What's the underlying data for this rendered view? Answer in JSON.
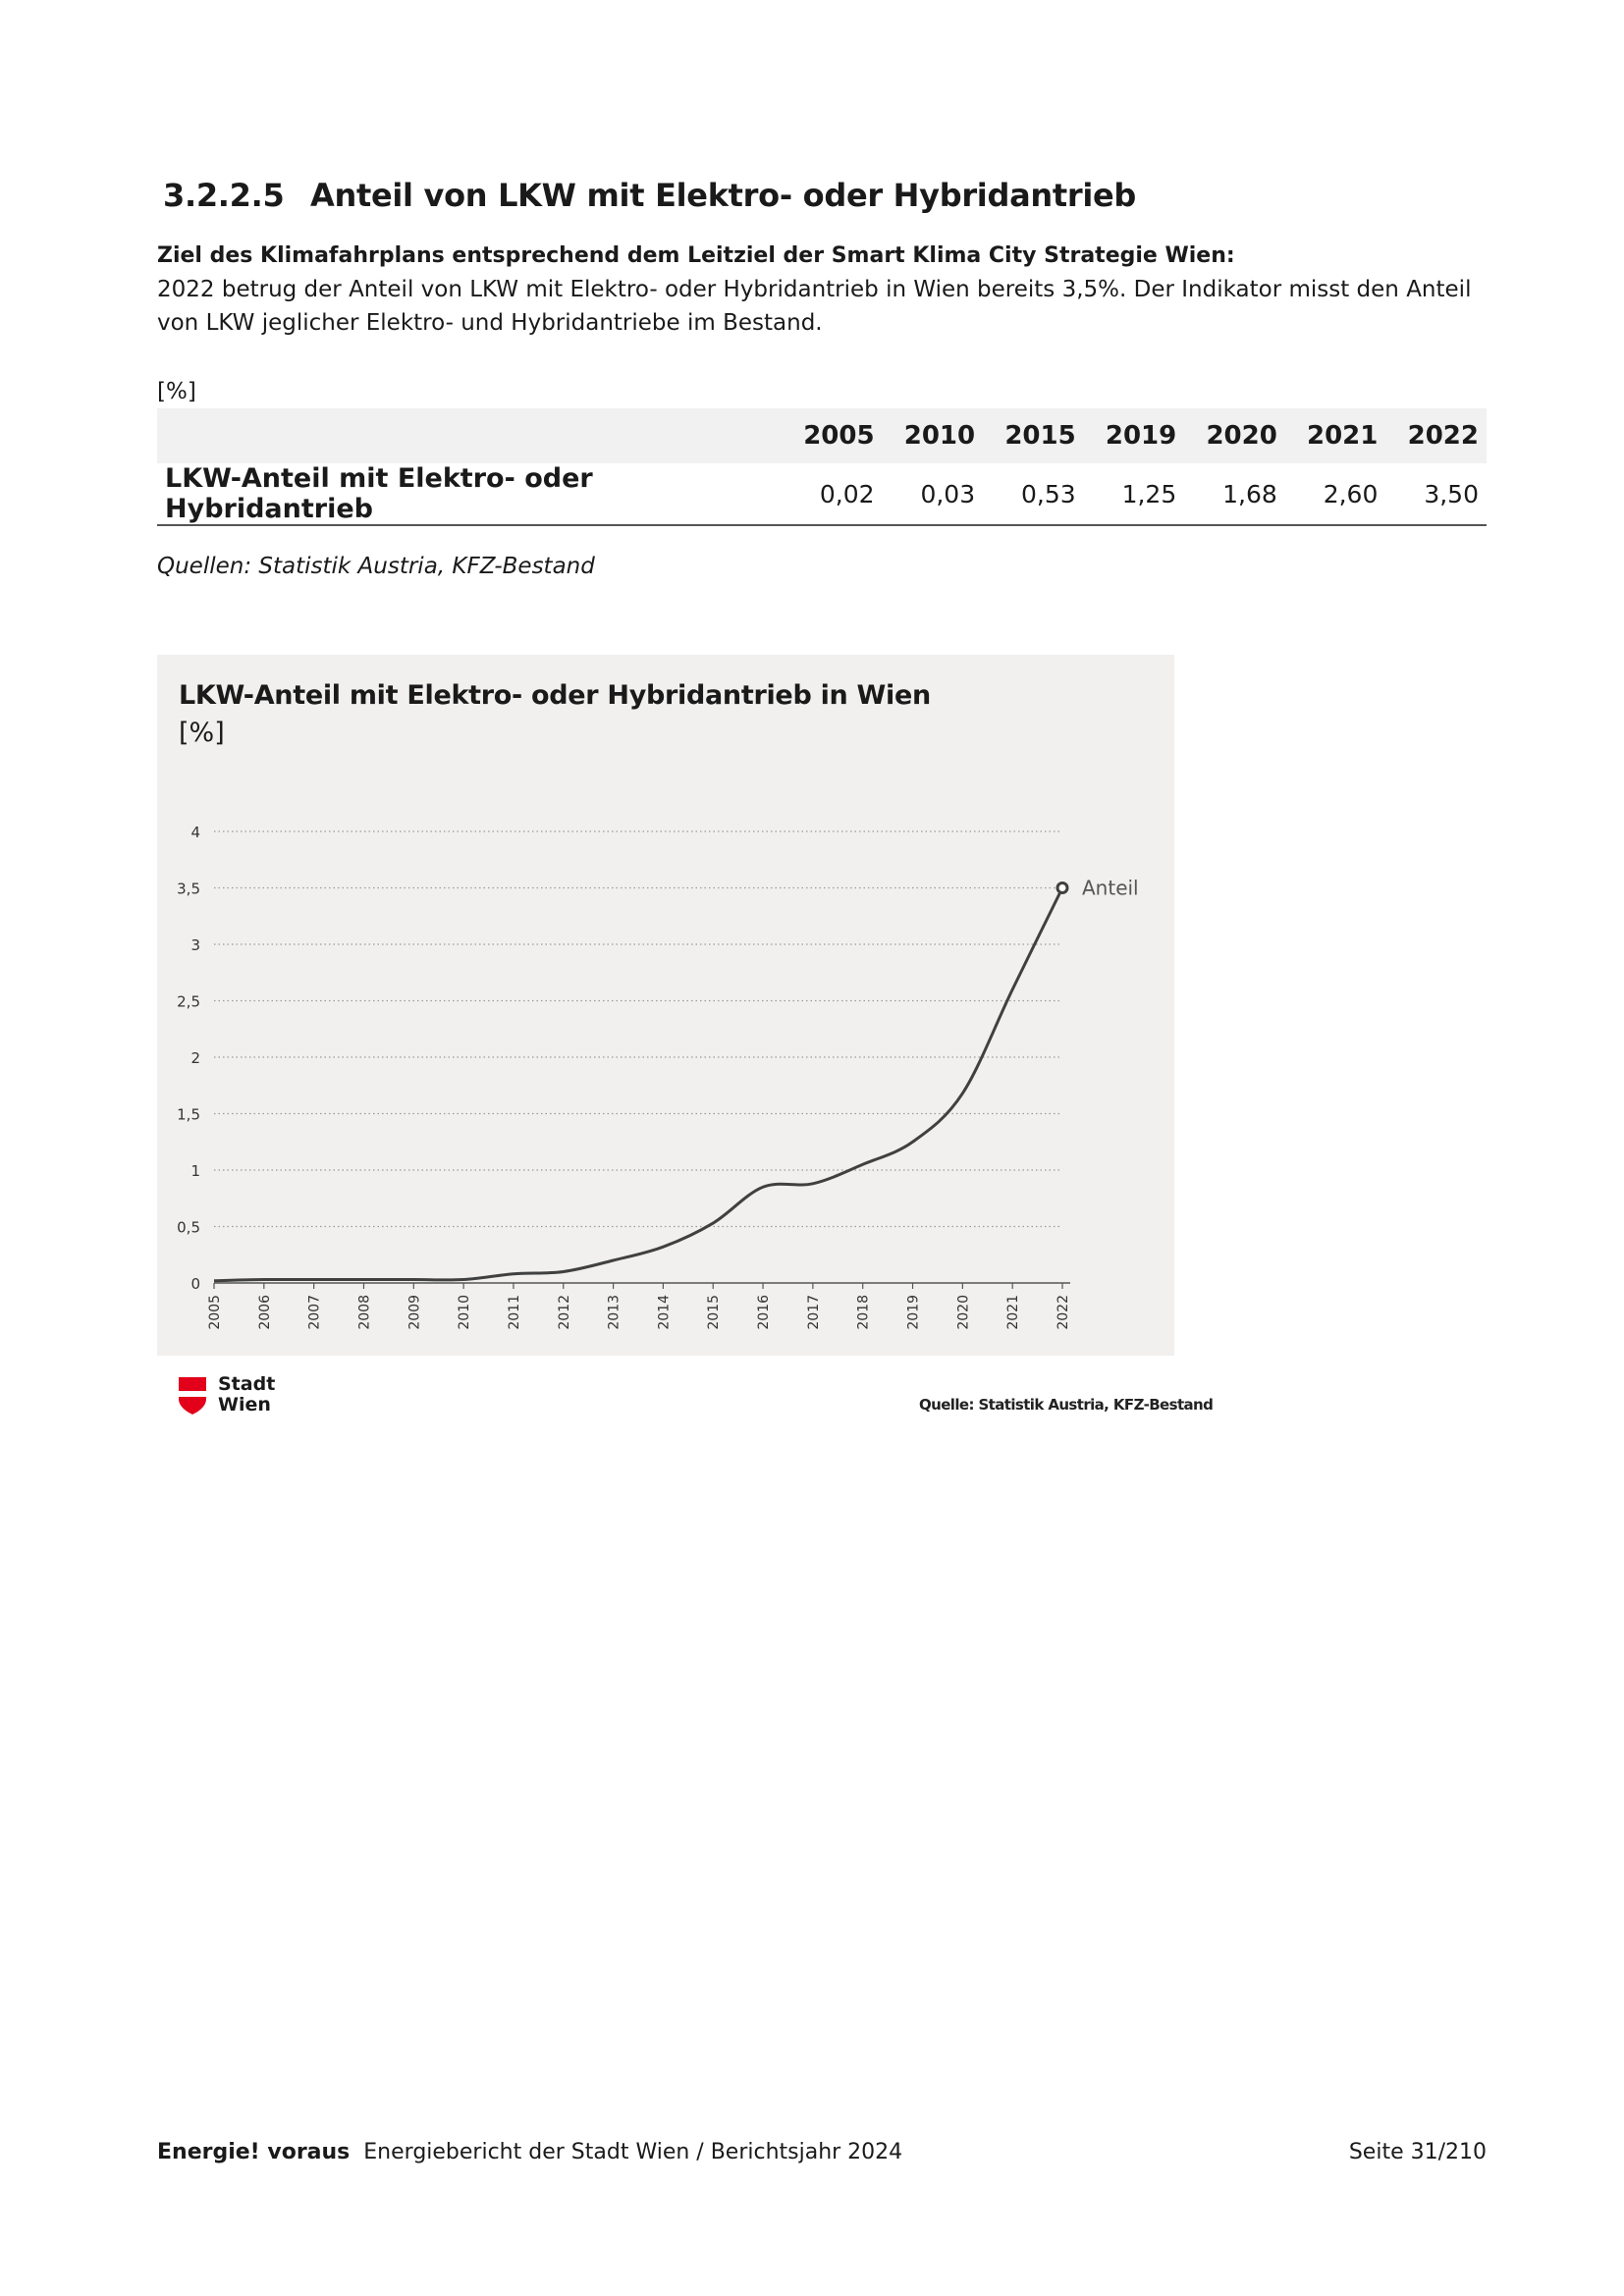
{
  "section": {
    "number": "3.2.2.5",
    "title": "Anteil von LKW mit Elektro- oder Hybridantrieb"
  },
  "goal_label": "Ziel des Klimafahrplans entsprechend dem Leitziel der Smart Klima City Strategie Wien:",
  "goal_text": "2022 betrug der Anteil von LKW mit Elektro- oder Hybridantrieb in Wien bereits 3,5%. Der Indikator misst den Anteil von LKW jeglicher Elektro- und Hybridantriebe im Bestand.",
  "table": {
    "unit": "[%]",
    "years": [
      "2005",
      "2010",
      "2015",
      "2019",
      "2020",
      "2021",
      "2022"
    ],
    "row_label": "LKW-Anteil mit Elektro- oder Hybridantrieb",
    "values": [
      "0,02",
      "0,03",
      "0,53",
      "1,25",
      "1,68",
      "2,60",
      "3,50"
    ]
  },
  "sources": "Quellen: Statistik Austria, KFZ-Bestand",
  "chart_data": {
    "type": "line",
    "title": "LKW-Anteil mit Elektro- oder Hybridantrieb in Wien",
    "ylabel": "[%]",
    "xlabel": "",
    "ylim": [
      0,
      4
    ],
    "y_ticks": [
      0,
      0.5,
      1,
      1.5,
      2,
      2.5,
      3,
      3.5,
      4
    ],
    "y_tick_labels": [
      "0",
      "0,5",
      "1",
      "1,5",
      "2",
      "2,5",
      "3",
      "3,5",
      "4"
    ],
    "x": [
      "2005",
      "2006",
      "2007",
      "2008",
      "2009",
      "2010",
      "2011",
      "2012",
      "2013",
      "2014",
      "2015",
      "2016",
      "2017",
      "2018",
      "2019",
      "2020",
      "2021",
      "2022"
    ],
    "series": [
      {
        "name": "Anteil",
        "values": [
          0.02,
          0.03,
          0.03,
          0.03,
          0.03,
          0.03,
          0.08,
          0.1,
          0.2,
          0.32,
          0.53,
          0.85,
          0.88,
          1.05,
          1.25,
          1.68,
          2.6,
          3.5
        ]
      }
    ],
    "gridlines": "dotted horizontal",
    "line_color": "#404040",
    "source": "Quelle: Statistik Austria, KFZ-Bestand"
  },
  "logo": {
    "line1": "Stadt",
    "line2": "Wien",
    "color": "#e2001a"
  },
  "footer": {
    "brand": "Energie! voraus",
    "text": "Energiebericht der Stadt Wien / Berichtsjahr 2024",
    "page": "Seite 31/210"
  }
}
